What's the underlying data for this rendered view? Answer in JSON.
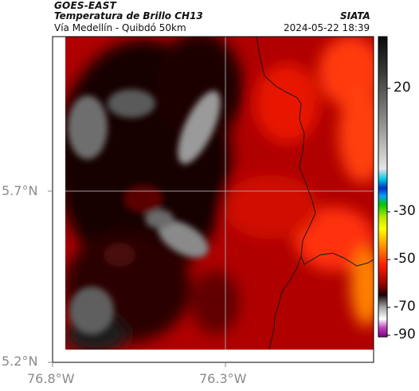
{
  "header": {
    "title_line1": "GOES-EAST",
    "title_line2": "Temperatura de Brillo CH13",
    "agency": "SIATA",
    "subtitle": "Vía Medellín - Quibdó 50km",
    "datetime": "2024-05-22 18:39"
  },
  "map": {
    "latitude_labels": [
      "5.7°N",
      "5.2°N"
    ],
    "longitude_labels": [
      "76.8°W",
      "76.3°W"
    ],
    "gridlines": "on"
  },
  "colorbar": {
    "tick_labels": [
      "20",
      "-30",
      "-50",
      "-70",
      "-90"
    ],
    "orientation": "vertical",
    "placement": "right"
  }
}
